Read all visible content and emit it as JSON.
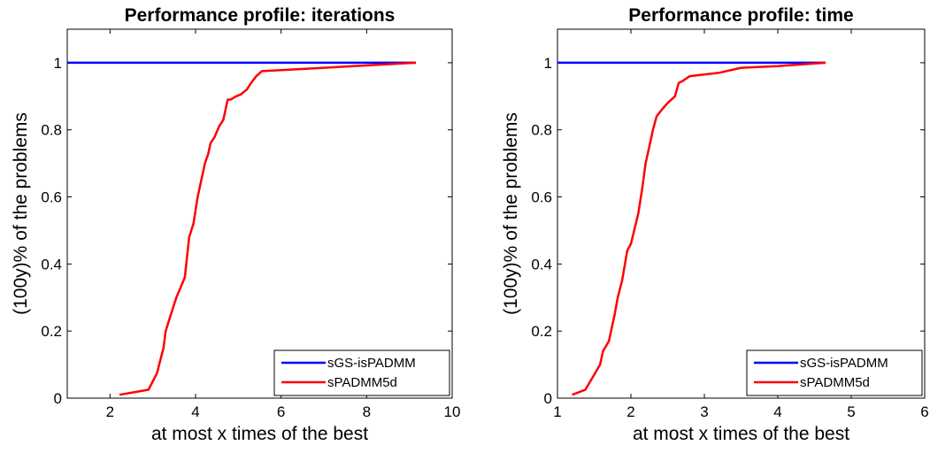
{
  "chart_data": [
    {
      "type": "line",
      "title": "Performance profile: iterations",
      "xlabel": "at most x times of the best",
      "ylabel": "(100y)% of the problems",
      "xlim": [
        1,
        10
      ],
      "ylim": [
        0,
        1.1
      ],
      "xticks": [
        2,
        4,
        6,
        8,
        10
      ],
      "yticks": [
        0,
        0.2,
        0.4,
        0.6,
        0.8,
        1
      ],
      "xtick_labels": [
        "2",
        "4",
        "6",
        "8",
        "10"
      ],
      "ytick_labels": [
        "0",
        "0.2",
        "0.4",
        "0.6",
        "0.8",
        "1"
      ],
      "legend_position": "bottom-right",
      "grid": false,
      "series": [
        {
          "name": "sGS-isPADMM",
          "color": "#0000ff",
          "x": [
            1,
            9.15
          ],
          "y": [
            1,
            1
          ]
        },
        {
          "name": "sPADMM5d",
          "color": "#ff0000",
          "x": [
            2.22,
            2.9,
            3.0,
            3.1,
            3.15,
            3.25,
            3.3,
            3.4,
            3.5,
            3.55,
            3.65,
            3.75,
            3.8,
            3.85,
            3.95,
            4.05,
            4.15,
            4.22,
            4.3,
            4.35,
            4.45,
            4.55,
            4.65,
            4.75,
            4.82,
            4.95,
            5.05,
            5.2,
            5.3,
            5.42,
            5.55,
            6.0,
            9.15
          ],
          "y": [
            0.01,
            0.025,
            0.05,
            0.075,
            0.1,
            0.15,
            0.2,
            0.24,
            0.28,
            0.3,
            0.33,
            0.36,
            0.42,
            0.48,
            0.52,
            0.6,
            0.66,
            0.7,
            0.73,
            0.76,
            0.78,
            0.81,
            0.83,
            0.89,
            0.89,
            0.9,
            0.905,
            0.92,
            0.94,
            0.96,
            0.975,
            0.978,
            1.0
          ]
        }
      ]
    },
    {
      "type": "line",
      "title": "Performance profile: time",
      "xlabel": "at most x times of the best",
      "ylabel": "(100y)% of the problems",
      "xlim": [
        1,
        6
      ],
      "ylim": [
        0,
        1.1
      ],
      "xticks": [
        1,
        2,
        3,
        4,
        5,
        6
      ],
      "yticks": [
        0,
        0.2,
        0.4,
        0.6,
        0.8,
        1
      ],
      "xtick_labels": [
        "1",
        "2",
        "3",
        "4",
        "5",
        "6"
      ],
      "ytick_labels": [
        "0",
        "0.2",
        "0.4",
        "0.6",
        "0.8",
        "1"
      ],
      "legend_position": "bottom-right",
      "grid": false,
      "series": [
        {
          "name": "sGS-isPADMM",
          "color": "#0000ff",
          "x": [
            1,
            4.65
          ],
          "y": [
            1,
            1
          ]
        },
        {
          "name": "sPADMM5d",
          "color": "#ff0000",
          "x": [
            1.2,
            1.38,
            1.5,
            1.58,
            1.62,
            1.7,
            1.78,
            1.82,
            1.88,
            1.95,
            2.0,
            2.1,
            2.15,
            2.2,
            2.25,
            2.3,
            2.35,
            2.42,
            2.5,
            2.6,
            2.65,
            2.7,
            2.8,
            3.2,
            3.5,
            4.0,
            4.65
          ],
          "y": [
            0.01,
            0.025,
            0.07,
            0.1,
            0.14,
            0.17,
            0.25,
            0.3,
            0.35,
            0.44,
            0.46,
            0.55,
            0.62,
            0.7,
            0.75,
            0.8,
            0.84,
            0.86,
            0.88,
            0.9,
            0.94,
            0.945,
            0.96,
            0.97,
            0.985,
            0.99,
            1.0
          ]
        }
      ]
    }
  ]
}
